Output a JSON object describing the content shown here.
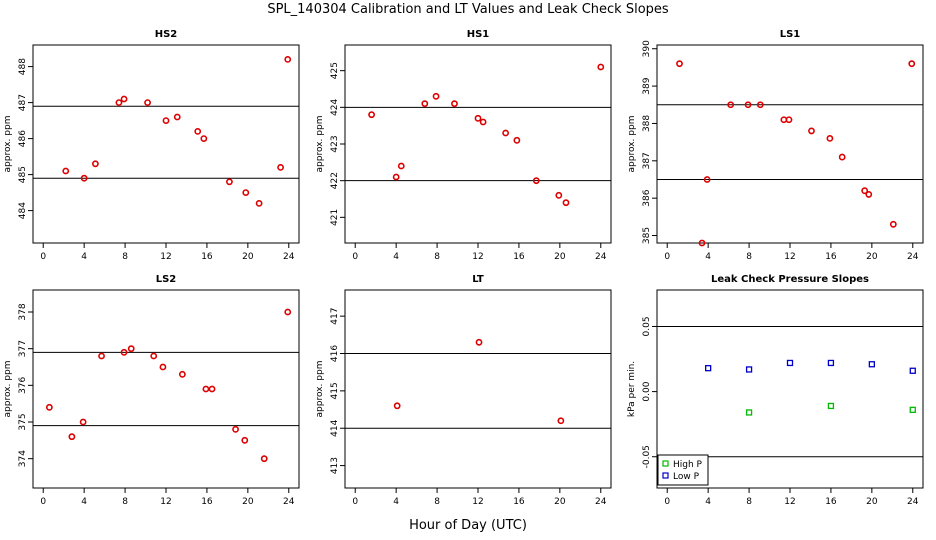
{
  "figure": {
    "title": "SPL_140304  Calibration and LT Values and Leak Check Slopes",
    "xlabel": "Hour of Day (UTC)"
  },
  "colors": {
    "axis": "#000000",
    "points_red": "#dd0000",
    "high_p": "#00bb00",
    "low_p": "#0000cc"
  },
  "chart_data": [
    {
      "type": "scatter",
      "title": "HS2",
      "ylabel": "approx. ppm",
      "xlim": [
        -1,
        25
      ],
      "ylim": [
        483.1,
        488.6
      ],
      "xticks": [
        0,
        4,
        8,
        12,
        16,
        20,
        24
      ],
      "yticks": [
        484,
        485,
        486,
        487,
        488
      ],
      "hlines": [
        484.9,
        486.9
      ],
      "series": [
        {
          "color": "#dd0000",
          "marker": "circle",
          "x": [
            2.2,
            4.0,
            5.1,
            7.4,
            7.9,
            10.2,
            12.0,
            13.1,
            15.1,
            15.7,
            18.2,
            19.8,
            21.1,
            23.2,
            23.9
          ],
          "y": [
            485.1,
            484.9,
            485.3,
            487.0,
            487.1,
            487.0,
            486.5,
            486.6,
            486.2,
            486.0,
            484.8,
            484.5,
            484.2,
            485.2,
            488.2
          ]
        }
      ]
    },
    {
      "type": "scatter",
      "title": "HS1",
      "ylabel": "approx. ppm",
      "xlim": [
        -1,
        25
      ],
      "ylim": [
        420.3,
        425.7
      ],
      "xticks": [
        0,
        4,
        8,
        12,
        16,
        20,
        24
      ],
      "yticks": [
        421,
        422,
        423,
        424,
        425
      ],
      "hlines": [
        422.0,
        424.0
      ],
      "series": [
        {
          "color": "#dd0000",
          "marker": "circle",
          "x": [
            1.6,
            4.0,
            4.5,
            6.8,
            7.9,
            9.7,
            12.0,
            12.5,
            14.7,
            15.8,
            17.7,
            19.9,
            20.6,
            24.0
          ],
          "y": [
            423.8,
            422.1,
            422.4,
            424.1,
            424.3,
            424.1,
            423.7,
            423.6,
            423.3,
            423.1,
            422.0,
            421.6,
            421.4,
            425.1
          ]
        }
      ]
    },
    {
      "type": "scatter",
      "title": "LS1",
      "ylabel": "approx. ppm",
      "xlim": [
        -1,
        25
      ],
      "ylim": [
        384.8,
        390.1
      ],
      "xticks": [
        0,
        4,
        8,
        12,
        16,
        20,
        24
      ],
      "yticks": [
        385,
        386,
        387,
        388,
        389,
        390
      ],
      "hlines": [
        386.5,
        388.5
      ],
      "series": [
        {
          "color": "#dd0000",
          "marker": "circle",
          "x": [
            1.2,
            3.4,
            3.9,
            6.2,
            7.9,
            9.1,
            11.4,
            11.9,
            14.1,
            15.9,
            17.1,
            19.3,
            19.7,
            22.1,
            23.9
          ],
          "y": [
            389.6,
            384.8,
            386.5,
            388.5,
            388.5,
            388.5,
            388.1,
            388.1,
            387.8,
            387.6,
            387.1,
            386.2,
            386.1,
            385.3,
            389.6
          ]
        }
      ]
    },
    {
      "type": "scatter",
      "title": "LS2",
      "ylabel": "approx. ppm",
      "xlim": [
        -1,
        25
      ],
      "ylim": [
        373.2,
        378.6
      ],
      "xticks": [
        0,
        4,
        8,
        12,
        16,
        20,
        24
      ],
      "yticks": [
        374,
        375,
        376,
        377,
        378
      ],
      "hlines": [
        374.9,
        376.9
      ],
      "series": [
        {
          "color": "#dd0000",
          "marker": "circle",
          "x": [
            0.6,
            2.8,
            3.9,
            5.7,
            7.9,
            8.6,
            10.8,
            11.7,
            13.6,
            15.9,
            16.5,
            18.8,
            19.7,
            21.6,
            23.9
          ],
          "y": [
            375.4,
            374.6,
            375.0,
            376.8,
            376.9,
            377.0,
            376.8,
            376.5,
            376.3,
            375.9,
            375.9,
            374.8,
            374.5,
            374.0,
            378.0
          ]
        }
      ]
    },
    {
      "type": "scatter",
      "title": "LT",
      "ylabel": "approx. ppm",
      "xlim": [
        -1,
        25
      ],
      "ylim": [
        412.4,
        417.7
      ],
      "xticks": [
        0,
        4,
        8,
        12,
        16,
        20,
        24
      ],
      "yticks": [
        413,
        414,
        415,
        416,
        417
      ],
      "hlines": [
        414.0,
        416.0
      ],
      "series": [
        {
          "color": "#dd0000",
          "marker": "circle",
          "x": [
            4.1,
            12.1,
            20.1
          ],
          "y": [
            414.6,
            416.3,
            414.2
          ]
        }
      ]
    },
    {
      "type": "scatter",
      "title": "Leak Check Pressure Slopes",
      "ylabel": "kPa per min.",
      "xlim": [
        -1,
        25
      ],
      "ylim": [
        -0.074,
        0.078
      ],
      "xticks": [
        0,
        4,
        8,
        12,
        16,
        20,
        24
      ],
      "yticks": [
        -0.05,
        0.0,
        0.05
      ],
      "ytick_labels": [
        "-0.05",
        "0.00",
        "0.05"
      ],
      "hlines": [
        -0.05,
        0.05
      ],
      "legend": {
        "position": "bottom-left"
      },
      "series": [
        {
          "name": "High P",
          "color": "#00bb00",
          "marker": "square",
          "x": [
            8.0,
            16.0,
            24.0
          ],
          "y": [
            -0.016,
            -0.011,
            -0.014
          ]
        },
        {
          "name": "Low P",
          "color": "#0000cc",
          "marker": "square",
          "x": [
            4.0,
            8.0,
            12.0,
            16.0,
            20.0,
            24.0
          ],
          "y": [
            0.018,
            0.017,
            0.022,
            0.022,
            0.021,
            0.016
          ]
        }
      ]
    }
  ]
}
